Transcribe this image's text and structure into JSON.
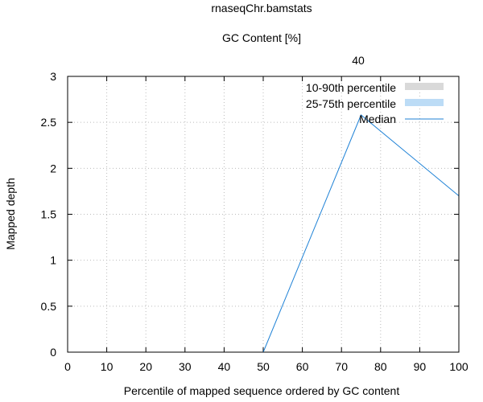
{
  "chart_data": {
    "type": "line",
    "title": "rnaseqChr.bamstats",
    "subtitle": "GC Content [%]",
    "top_axis_label": "40",
    "xlabel": "Percentile of mapped sequence ordered by GC content",
    "ylabel": "Mapped depth",
    "xlim": [
      0,
      100
    ],
    "ylim": [
      0,
      3
    ],
    "x_ticks": [
      "0",
      "10",
      "20",
      "30",
      "40",
      "50",
      "60",
      "70",
      "80",
      "90",
      "100"
    ],
    "y_ticks": [
      "0",
      "0.5",
      "1",
      "1.5",
      "2",
      "2.5",
      "3"
    ],
    "grid": true,
    "legend_position": "top-right",
    "series": [
      {
        "name": "10-90th percentile",
        "kind": "band",
        "color": "#d9d9d9",
        "points": []
      },
      {
        "name": "25-75th percentile",
        "kind": "band",
        "color": "#bcdcf6",
        "points": []
      },
      {
        "name": "Median",
        "kind": "line",
        "color": "#1f82d6",
        "x": [
          50,
          75,
          100
        ],
        "y": [
          0,
          2.58,
          1.7
        ]
      }
    ]
  }
}
